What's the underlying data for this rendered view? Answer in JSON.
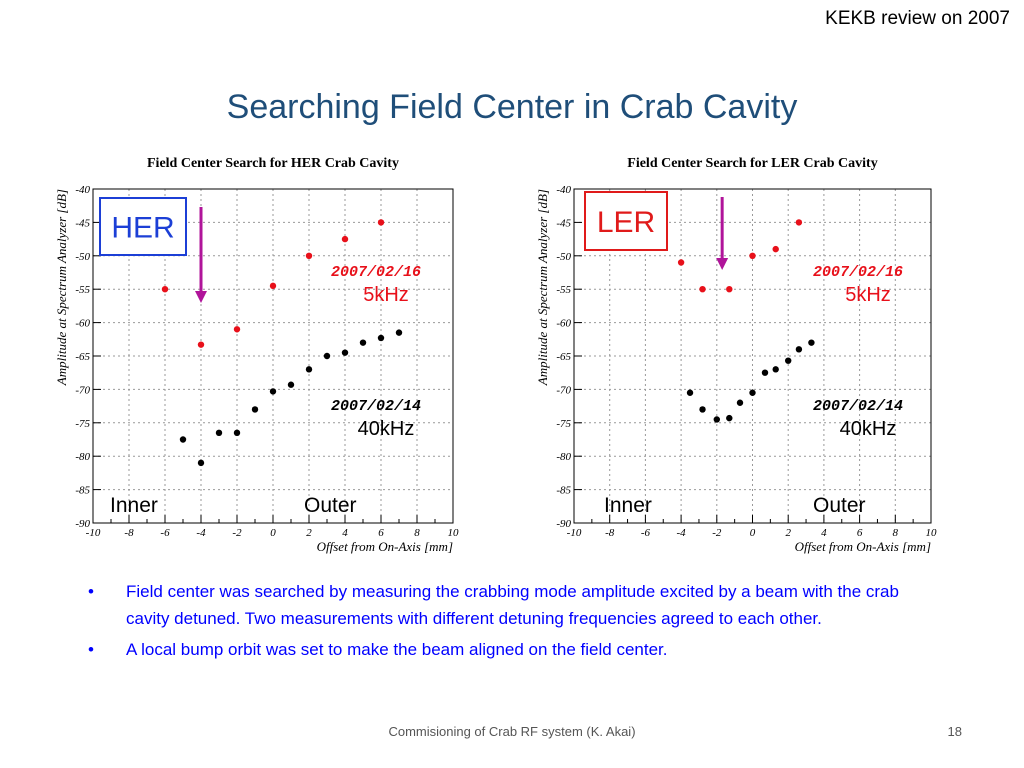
{
  "header": {
    "note": "KEKB review on 2007"
  },
  "title": "Searching Field Center in Crab Cavity",
  "colors": {
    "title": "#1f4e79",
    "bullet_text": "#0000ff",
    "series_5khz": "#e8101a",
    "series_40khz": "#000000",
    "her_box": "#1c3fd6",
    "ler_box": "#e01a1a",
    "arrow": "#b0149a"
  },
  "chart_data": [
    {
      "type": "scatter",
      "title": "Field Center Search for HER Crab Cavity",
      "xlabel": "Offset from On-Axis [mm]",
      "ylabel": "Amplitude at Spectrum Analyzer [dB]",
      "xlim": [
        -10,
        10
      ],
      "ylim": [
        -90,
        -40
      ],
      "xticks": [
        -10,
        -8,
        -6,
        -4,
        -2,
        0,
        2,
        4,
        6,
        8,
        10
      ],
      "yticks": [
        -40,
        -45,
        -50,
        -55,
        -60,
        -65,
        -70,
        -75,
        -80,
        -85,
        -90
      ],
      "grid": true,
      "box_label": "HER",
      "box_color": "#1c3fd6",
      "arrow_x": -4,
      "labels": {
        "inner": "Inner",
        "outer": "Outer"
      },
      "series": [
        {
          "date": "2007/02/16",
          "freq": "5kHz",
          "color": "#e8101a",
          "points": [
            [
              -6,
              -55
            ],
            [
              -4,
              -63.3
            ],
            [
              -2,
              -61
            ],
            [
              0,
              -54.5
            ],
            [
              2,
              -50
            ],
            [
              4,
              -47.5
            ],
            [
              6,
              -45
            ]
          ]
        },
        {
          "date": "2007/02/14",
          "freq": "40kHz",
          "color": "#000000",
          "points": [
            [
              -5,
              -77.5
            ],
            [
              -4,
              -81
            ],
            [
              -3,
              -76.5
            ],
            [
              -2,
              -76.5
            ],
            [
              -1,
              -73
            ],
            [
              0,
              -70.3
            ],
            [
              1,
              -69.3
            ],
            [
              2,
              -67
            ],
            [
              3,
              -65
            ],
            [
              4,
              -64.5
            ],
            [
              5,
              -63
            ],
            [
              6,
              -62.3
            ],
            [
              7,
              -61.5
            ]
          ]
        }
      ]
    },
    {
      "type": "scatter",
      "title": "Field Center Search for LER Crab Cavity",
      "xlabel": "Offset from On-Axis [mm]",
      "ylabel": "Amplitude at Spectrum Analyzer [dB]",
      "xlim": [
        -10,
        10
      ],
      "ylim": [
        -90,
        -40
      ],
      "xticks": [
        -10,
        -8,
        -6,
        -4,
        -2,
        0,
        2,
        4,
        6,
        8,
        10
      ],
      "yticks": [
        -40,
        -45,
        -50,
        -55,
        -60,
        -65,
        -70,
        -75,
        -80,
        -85,
        -90
      ],
      "grid": true,
      "box_label": "LER",
      "box_color": "#e01a1a",
      "arrow_x": -1.7,
      "labels": {
        "inner": "Inner",
        "outer": "Outer"
      },
      "series": [
        {
          "date": "2007/02/16",
          "freq": "5kHz",
          "color": "#e8101a",
          "points": [
            [
              -4,
              -51
            ],
            [
              -2.8,
              -55
            ],
            [
              -1.3,
              -55
            ],
            [
              0,
              -50
            ],
            [
              1.3,
              -49
            ],
            [
              2.6,
              -45
            ]
          ]
        },
        {
          "date": "2007/02/14",
          "freq": "40kHz",
          "color": "#000000",
          "points": [
            [
              -3.5,
              -70.5
            ],
            [
              -2.8,
              -73
            ],
            [
              -2,
              -74.5
            ],
            [
              -1.3,
              -74.3
            ],
            [
              -0.7,
              -72
            ],
            [
              0,
              -70.5
            ],
            [
              0.7,
              -67.5
            ],
            [
              1.3,
              -67
            ],
            [
              2,
              -65.7
            ],
            [
              2.6,
              -64
            ],
            [
              3.3,
              -63
            ]
          ]
        }
      ]
    }
  ],
  "bullets": [
    "Field center was searched by measuring the crabbing mode amplitude excited by a beam with the crab cavity detuned. Two measurements with different detuning frequencies agreed to each other.",
    "A local bump orbit was set to make the beam aligned on the field center."
  ],
  "bullet_symbol": "•",
  "footer": {
    "text": "Commisioning of Crab RF system (K. Akai)",
    "page": "18"
  }
}
